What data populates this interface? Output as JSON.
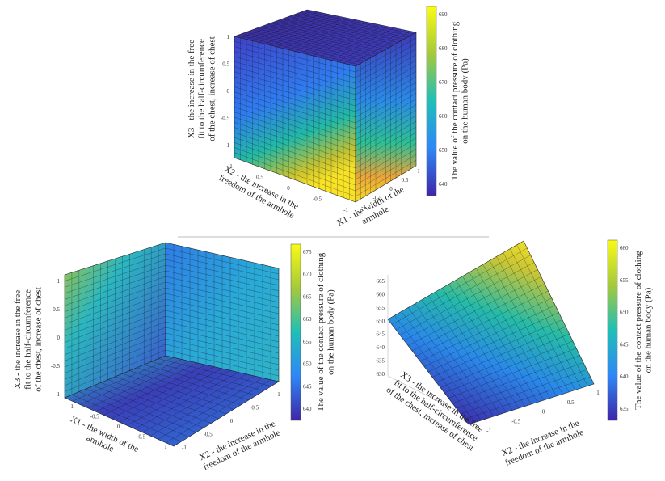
{
  "panels": [
    {
      "z_label": [
        "X3 - the increase in the free",
        "fit to the half-circumference",
        "of the chest, increase of chest"
      ],
      "x_label": [
        "X2 - the increase in the",
        "freedom of the armhole"
      ],
      "y_label": [
        "X1 - the width of the",
        "armhole"
      ],
      "z_ticks": [
        "1",
        "0.5",
        "0",
        "-0.5",
        "-1"
      ],
      "x_ticks": [
        "1",
        "0.5",
        "0",
        "-0.5",
        "-1"
      ],
      "y_ticks": [
        "-1",
        "-0.5",
        "0",
        "0.5",
        "1"
      ],
      "colorbar_label": [
        "The value of the contact pressure of clothing",
        "on the human body (Pa)"
      ],
      "colorbar_ticks": [
        "690",
        "680",
        "670",
        "660",
        "650",
        "640"
      ]
    },
    {
      "z_label": [
        "X3 - the increase in the free",
        "fit to the half-circumference",
        "of the chest, increase of chest"
      ],
      "x_label": [
        "X1 - the width of the",
        "armhole"
      ],
      "y_label": [
        "X2 - the increase in the",
        "freedom of the armhole"
      ],
      "z_ticks": [
        "1",
        "0.5",
        "0",
        "-0.5",
        "-1"
      ],
      "x_ticks": [
        "-1",
        "-0.5",
        "0",
        "0.5",
        "1"
      ],
      "y_ticks": [
        "1",
        "0.5",
        "0",
        "-0.5",
        "-1"
      ],
      "colorbar_label": [
        "The value of the contact pressure of clothing",
        "on the human body (Pa)"
      ],
      "colorbar_ticks": [
        "675",
        "670",
        "665",
        "660",
        "655",
        "650",
        "645",
        "640"
      ]
    },
    {
      "z_label": [
        "X3 - the increase in the free",
        "fit to the half-circumference",
        "of the chest, increase of chest"
      ],
      "x_label": [
        "X2 - the increase in the",
        "freedom of the armhole"
      ],
      "y_label": [],
      "z_ticks": [
        "665",
        "660",
        "655",
        "650",
        "645",
        "640",
        "635",
        "630"
      ],
      "x_ticks": [
        "-1",
        "-0.5",
        "0",
        "0.5",
        "1"
      ],
      "y_ticks": [],
      "colorbar_label": [
        "The value of the contact pressure of clothing",
        "on the human body (Pa)"
      ],
      "colorbar_ticks": [
        "660",
        "655",
        "650",
        "645",
        "640",
        "635"
      ]
    }
  ]
}
